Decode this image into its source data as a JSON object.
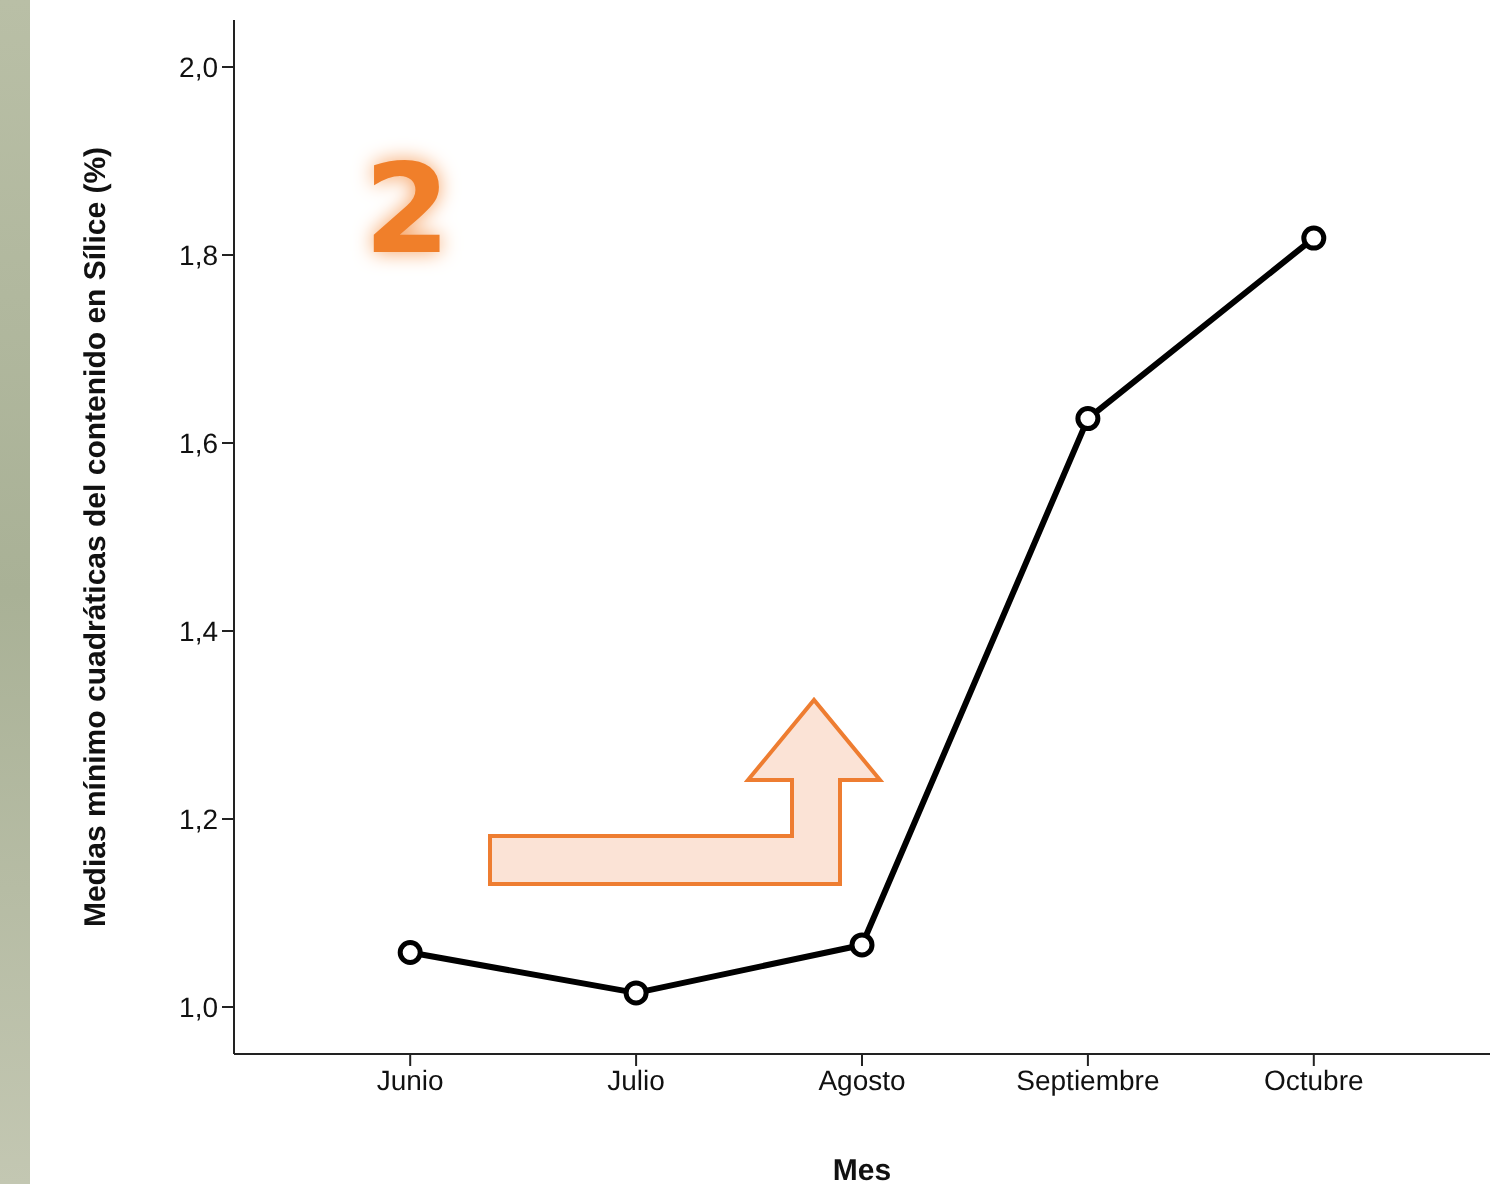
{
  "chart_data": {
    "type": "line",
    "xlabel": "Mes",
    "ylabel": "Medias mínimo cuadráticas del contenido en Sílice (%)",
    "categories": [
      "Junio",
      "Julio",
      "Agosto",
      "Septiembre",
      "Octubre"
    ],
    "series": [
      {
        "color": "#000000",
        "values": [
          1.058,
          1.015,
          1.066,
          1.626,
          1.818
        ]
      }
    ],
    "ylim": [
      0.95,
      2.05
    ],
    "yticks": [
      {
        "value": 1,
        "label": "1,0"
      },
      {
        "value": 1.2,
        "label": "1,2"
      },
      {
        "value": 1.4,
        "label": "1,4"
      },
      {
        "value": 1.6,
        "label": "1,6"
      },
      {
        "value": 1.8,
        "label": "1,8"
      },
      {
        "value": 2,
        "label": "2,0"
      }
    ],
    "grid": false,
    "legend": false,
    "marker": "circle",
    "line_style": "solid",
    "annotations": [
      "2"
    ]
  }
}
